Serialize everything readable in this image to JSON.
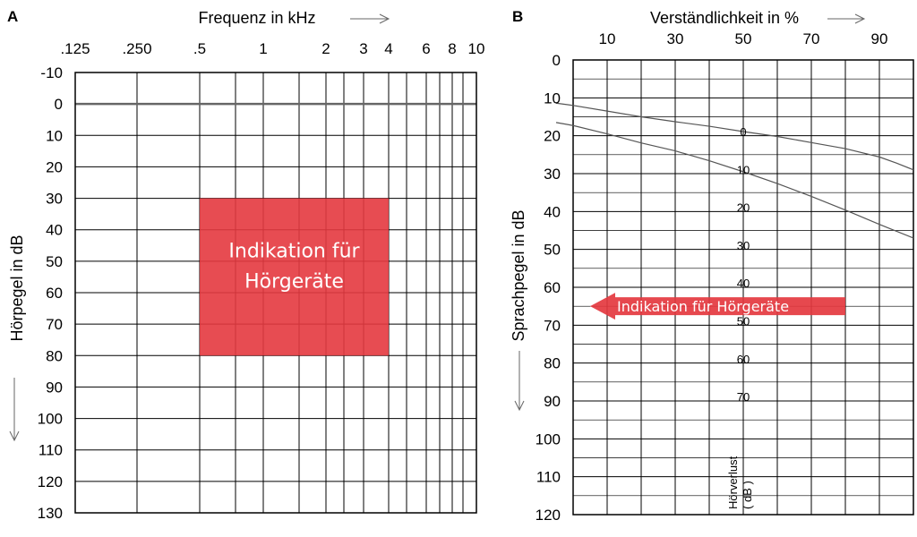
{
  "chart_data": [
    {
      "panel": "A",
      "type": "audiogram",
      "xlabel": "Frequenz in kHz",
      "ylabel": "Hörpegel in dB",
      "x_ticks": [
        ".125",
        ".250",
        ".5",
        "1",
        "2",
        "3",
        "4",
        "6",
        "8",
        "10"
      ],
      "x_values_khz": [
        0.125,
        0.25,
        0.5,
        1,
        2,
        3,
        4,
        6,
        8,
        10
      ],
      "y_ticks": [
        "-10",
        "0",
        "10",
        "20",
        "30",
        "40",
        "50",
        "60",
        "70",
        "80",
        "90",
        "100",
        "110",
        "120",
        "130"
      ],
      "ylim": [
        -10,
        130
      ],
      "y_inverted": true,
      "grid": true,
      "reference_line_db": 0,
      "region": {
        "label_lines": [
          "Indikation für",
          "Hörgeräte"
        ],
        "x_range_khz": [
          0.5,
          4
        ],
        "y_range_db": [
          30,
          80
        ],
        "color": "#e4383f"
      }
    },
    {
      "panel": "B",
      "type": "line",
      "xlabel": "Verständlichkeit in %",
      "ylabel": "Sprachpegel in dB",
      "x_ticks": [
        "10",
        "30",
        "50",
        "70",
        "90"
      ],
      "xlim": [
        0,
        100
      ],
      "y_ticks": [
        "0",
        "10",
        "20",
        "30",
        "40",
        "50",
        "60",
        "70",
        "80",
        "90",
        "100",
        "110",
        "120"
      ],
      "ylim": [
        0,
        120
      ],
      "y_inverted": true,
      "grid": true,
      "series": [
        {
          "values": [
            [
              -5,
              11.4
            ],
            [
              0,
              12.0
            ],
            [
              10,
              13.5
            ],
            [
              20,
              15.0
            ],
            [
              30,
              16.3
            ],
            [
              40,
              17.5
            ],
            [
              50,
              18.9
            ],
            [
              60,
              20.2
            ],
            [
              70,
              21.8
            ],
            [
              80,
              23.4
            ],
            [
              90,
              25.6
            ],
            [
              95,
              27.2
            ],
            [
              100,
              29.0
            ]
          ]
        },
        {
          "values": [
            [
              -5,
              16.5
            ],
            [
              0,
              17.3
            ],
            [
              10,
              19.5
            ],
            [
              20,
              21.9
            ],
            [
              30,
              24.0
            ],
            [
              40,
              26.6
            ],
            [
              50,
              29.5
            ],
            [
              60,
              32.6
            ],
            [
              70,
              36.0
            ],
            [
              80,
              39.6
            ],
            [
              90,
              43.4
            ],
            [
              100,
              47.0
            ]
          ]
        }
      ],
      "hearing_loss_labels": [
        "0",
        "10",
        "20",
        "30",
        "40",
        "50",
        "60",
        "70"
      ],
      "hearing_loss_title": [
        "Hörverlust",
        "( dB )"
      ],
      "arrow": {
        "label": "Indikation für Hörgeräte",
        "level_db": 65,
        "x_from_pct": 80,
        "x_to_pct": 5,
        "color": "#e4383f"
      }
    }
  ]
}
